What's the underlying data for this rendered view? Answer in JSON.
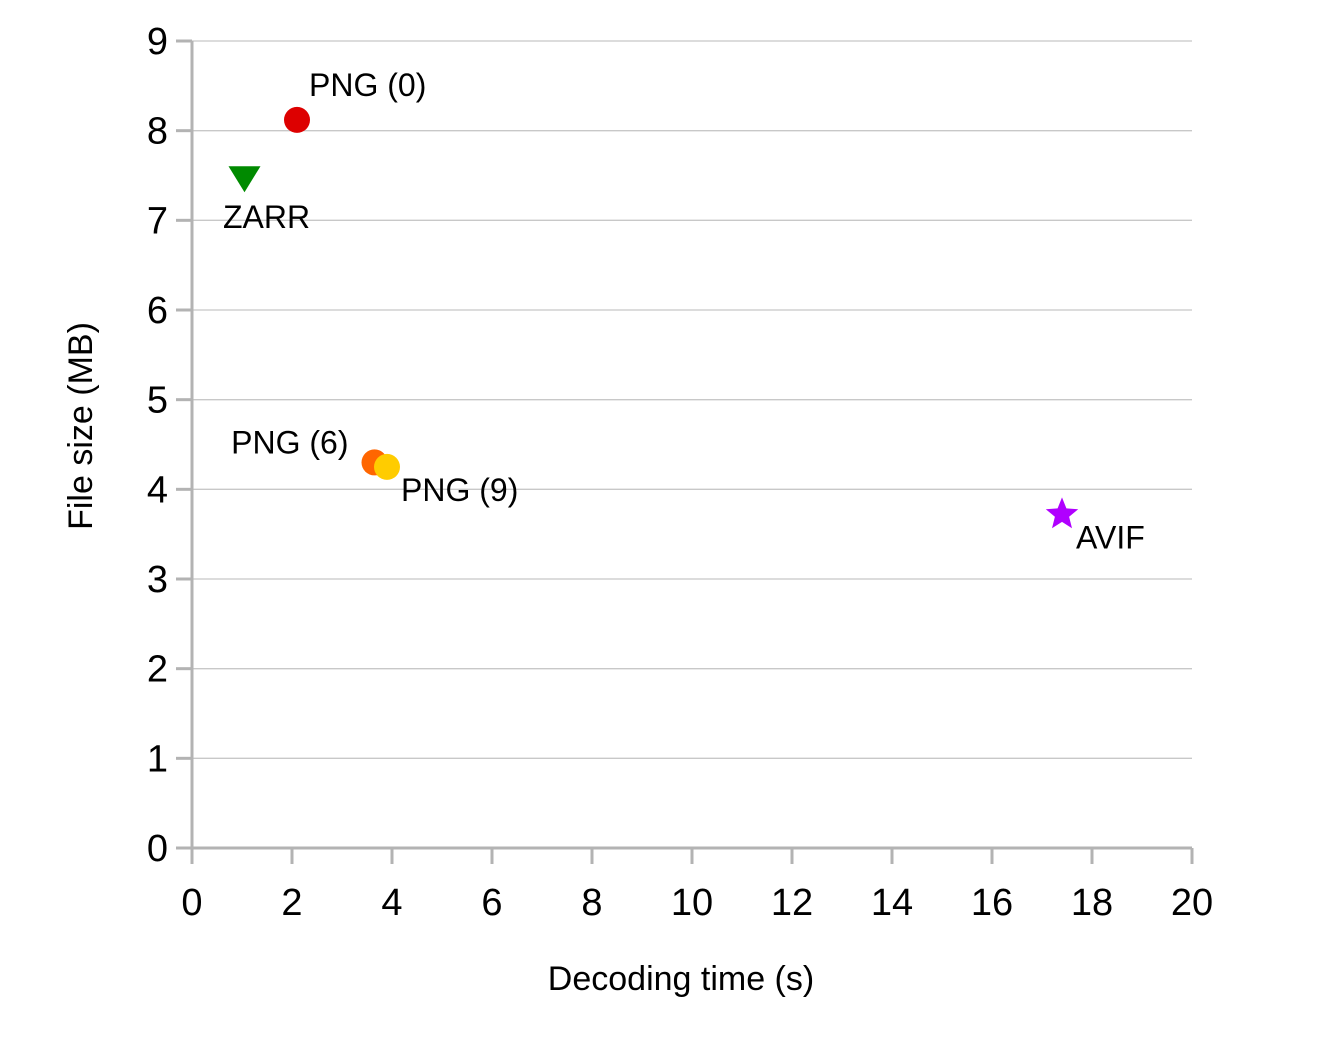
{
  "chart_data": {
    "type": "scatter",
    "xlabel": "Decoding time (s)",
    "ylabel": "File size (MB)",
    "xlim": [
      0,
      20
    ],
    "ylim": [
      0,
      9
    ],
    "x_ticks": [
      "0",
      "2",
      "4",
      "6",
      "8",
      "10",
      "12",
      "14",
      "16",
      "18",
      "20"
    ],
    "y_ticks": [
      "0",
      "1",
      "2",
      "3",
      "4",
      "5",
      "6",
      "7",
      "8",
      "9"
    ],
    "grid": "horizontal",
    "points": [
      {
        "label": "PNG (0)",
        "x": 2.1,
        "y": 8.12,
        "marker": "circle",
        "color": "#dd0000",
        "label_position": "above-right"
      },
      {
        "label": "ZARR",
        "x": 1.05,
        "y": 7.47,
        "marker": "triangle-down",
        "color": "#008a00",
        "label_position": "below"
      },
      {
        "label": "PNG (6)",
        "x": 3.65,
        "y": 4.3,
        "marker": "circle",
        "color": "#ff6600",
        "label_position": "upper-left"
      },
      {
        "label": "PNG (9)",
        "x": 3.9,
        "y": 4.25,
        "marker": "circle",
        "color": "#ffcc00",
        "label_position": "below-right"
      },
      {
        "label": "AVIF",
        "x": 17.4,
        "y": 3.72,
        "marker": "star",
        "color": "#b000ff",
        "label_position": "below-right"
      }
    ]
  }
}
